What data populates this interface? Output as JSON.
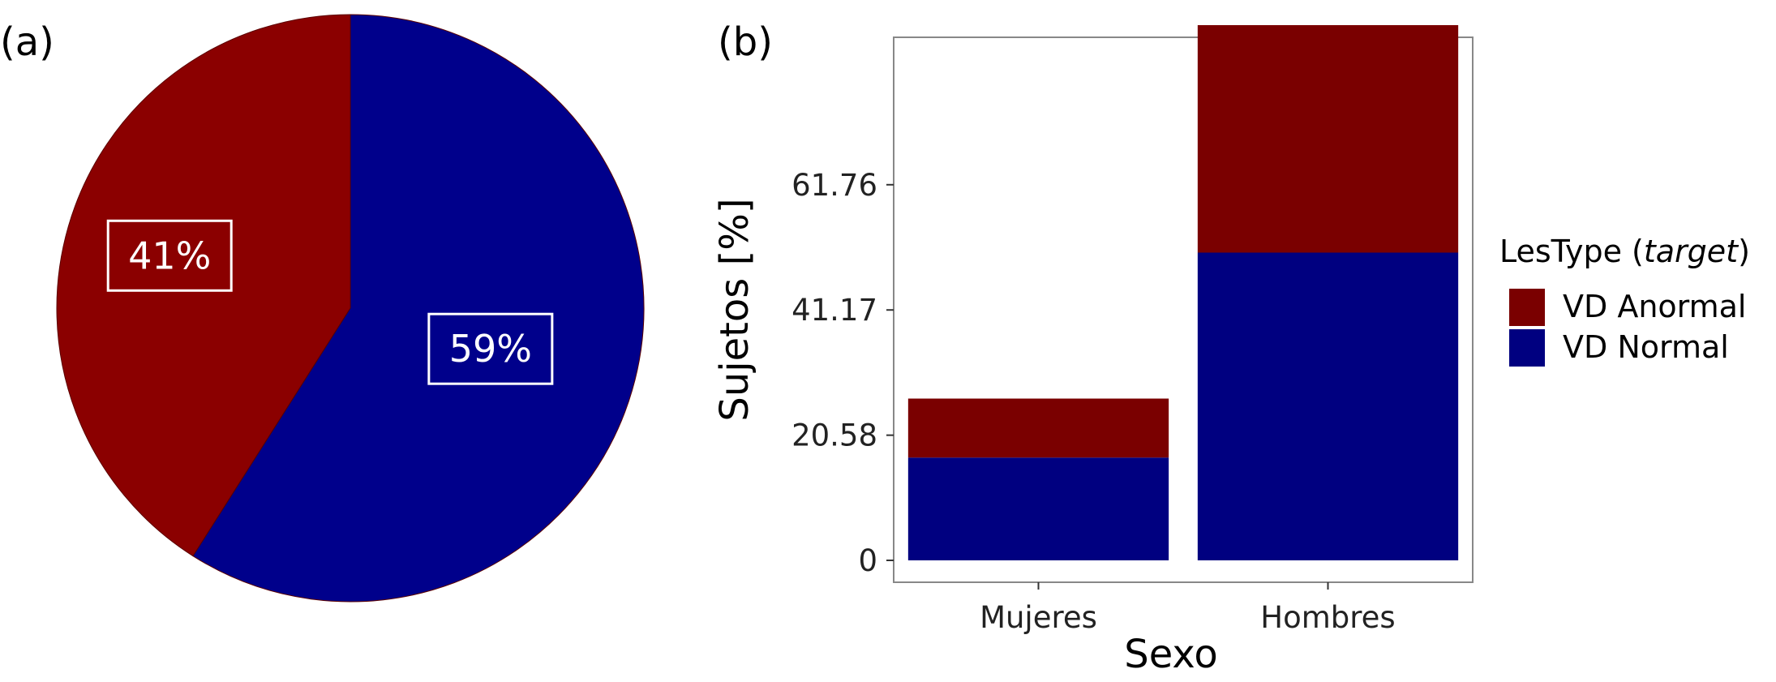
{
  "colors": {
    "pie_abnormal": "#8B0000",
    "pie_normal": "#00008B",
    "bar_abnormal": "#7A0000",
    "bar_normal": "#000080"
  },
  "chart_data": [
    {
      "type": "pie",
      "panel_label": "(a)",
      "slices": [
        {
          "value": 41,
          "label": "41%",
          "color": "#8B0000"
        },
        {
          "value": 59,
          "label": "59%",
          "color": "#00008B"
        }
      ]
    },
    {
      "type": "bar",
      "panel_label": "(b)",
      "stacked": true,
      "categories": [
        "Mujeres",
        "Hombres"
      ],
      "series": [
        {
          "name": "VD Normal",
          "values": [
            16.9,
            50.6
          ],
          "color": "#000080"
        },
        {
          "name": "VD Anormal",
          "values": [
            9.7,
            37.4
          ],
          "color": "#7A0000"
        }
      ],
      "xlabel": "Sexo",
      "ylabel": "Sujetos [%]",
      "yticks": [
        0,
        20.58,
        41.17,
        61.76
      ],
      "ytick_labels": [
        "0",
        "20.58",
        "41.17",
        "61.76"
      ],
      "ylim": [
        -3.6,
        86.0
      ],
      "grid": false,
      "legend": {
        "title_prefix": "LesType (",
        "title_italic": "target",
        "title_suffix": ")",
        "placement": "right",
        "entries": [
          "VD Anormal",
          "VD Normal"
        ]
      }
    }
  ]
}
